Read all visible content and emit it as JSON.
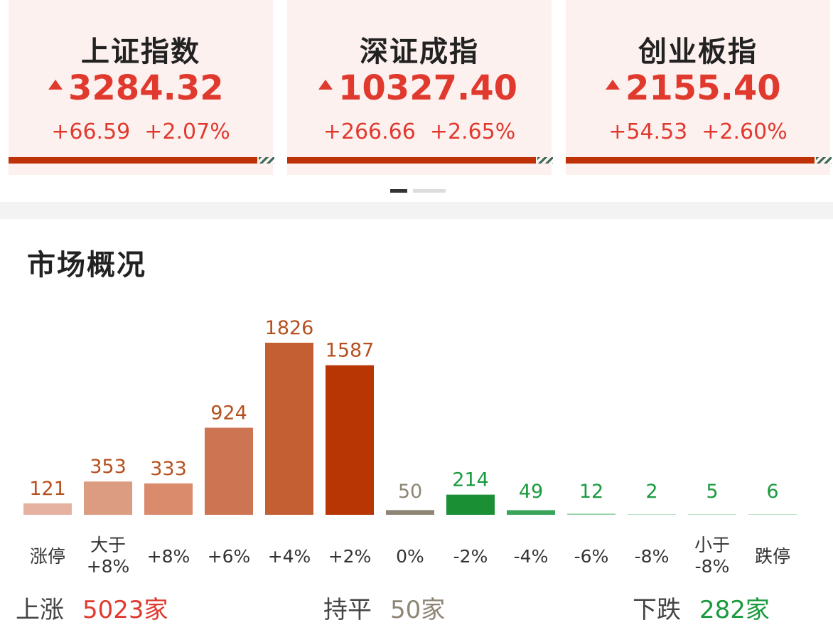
{
  "indices": [
    {
      "name": "上证指数",
      "price": "3284.32",
      "change": "+66.59",
      "pct": "+2.07%"
    },
    {
      "name": "深证成指",
      "price": "10327.40",
      "change": "+266.66",
      "pct": "+2.65%"
    },
    {
      "name": "创业板指",
      "price": "2155.40",
      "change": "+54.53",
      "pct": "+2.60%"
    }
  ],
  "market": {
    "title": "市场概况",
    "summary": {
      "up_label": "上涨",
      "up_value": "5023家",
      "flat_label": "持平",
      "flat_value": "50家",
      "down_label": "下跌",
      "down_value": "282家"
    }
  },
  "colors": {
    "up": "#e03a2f",
    "down": "#1a9a3e",
    "flat": "#8d8675",
    "bar_dark": "#bf3208"
  },
  "chart_data": {
    "type": "bar",
    "categories": [
      "涨停",
      "大于\n+8%",
      "+8%",
      "+6%",
      "+4%",
      "+2%",
      "0%",
      "-2%",
      "-4%",
      "-6%",
      "-8%",
      "小于\n-8%",
      "跌停"
    ],
    "values": [
      121,
      353,
      333,
      924,
      1826,
      1587,
      50,
      214,
      49,
      12,
      2,
      5,
      6
    ],
    "bar_colors": [
      "#e5b2a1",
      "#dc9c82",
      "#d98b6c",
      "#cd7452",
      "#c45f34",
      "#b83504",
      "#8d8675",
      "#1a8f34",
      "#3aa55a",
      "#8fcea0",
      "#b8e0c2",
      "#b8e0c2",
      "#b8e0c2"
    ],
    "label_colors": [
      "#b5501f",
      "#b5501f",
      "#b5501f",
      "#b5501f",
      "#b5501f",
      "#b5501f",
      "#8d8675",
      "#1a9a3e",
      "#1a9a3e",
      "#1a9a3e",
      "#1a9a3e",
      "#1a9a3e",
      "#1a9a3e"
    ],
    "ylim": [
      0,
      1826
    ]
  }
}
